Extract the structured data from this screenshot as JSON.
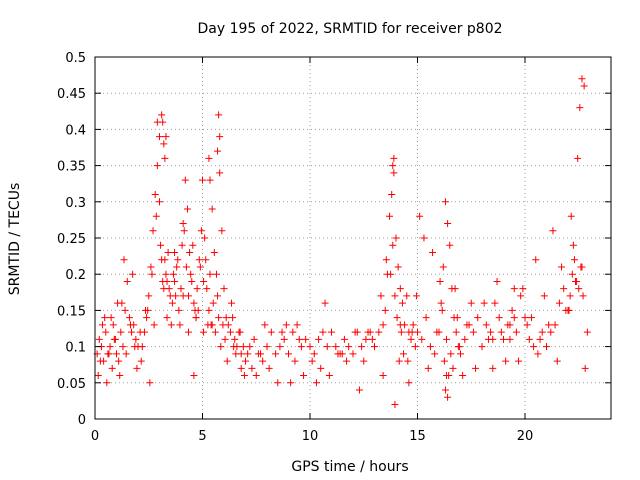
{
  "chart_data": {
    "type": "scatter",
    "title": "Day 195 of 2022, SRMTID for receiver p802",
    "xlabel": "GPS time / hours",
    "ylabel": "SRMTID / TECUs",
    "xlim": [
      0,
      24
    ],
    "ylim": [
      0,
      0.5
    ],
    "xticks": [
      0,
      5,
      10,
      15,
      20
    ],
    "xtick_labels": [
      "0",
      "5",
      "10",
      "15",
      "20"
    ],
    "yticks": [
      0,
      0.05,
      0.1,
      0.15,
      0.2,
      0.25,
      0.3,
      0.35,
      0.4,
      0.45,
      0.5
    ],
    "ytick_labels": [
      "0",
      "0.05",
      "0.1",
      "0.15",
      "0.2",
      "0.25",
      "0.3",
      "0.35",
      "0.4",
      "0.45",
      "0.5"
    ],
    "grid": true,
    "marker": "+",
    "color": "#ff0000",
    "series": [
      {
        "name": "SRMTID",
        "x": [
          0.1,
          0.2,
          0.3,
          0.4,
          0.5,
          0.6,
          0.7,
          0.8,
          0.9,
          1.0,
          1.1,
          1.2,
          1.3,
          1.4,
          1.5,
          1.6,
          1.7,
          1.8,
          1.9,
          2.0,
          2.1,
          2.2,
          2.3,
          2.4,
          2.5,
          2.6,
          2.7,
          2.8,
          2.9,
          3.0,
          3.1,
          3.2,
          3.3,
          3.4,
          3.5,
          3.6,
          3.7,
          3.8,
          3.9,
          4.0,
          4.1,
          4.2,
          4.3,
          4.4,
          4.5,
          4.6,
          4.7,
          4.8,
          4.9,
          5.0,
          5.1,
          5.2,
          5.3,
          5.4,
          5.5,
          5.6,
          5.7,
          5.8,
          5.9,
          6.0,
          6.1,
          6.2,
          6.3,
          6.4,
          6.5,
          6.6,
          6.7,
          6.8,
          6.9,
          7.0,
          7.2,
          7.4,
          7.6,
          7.8,
          8.0,
          8.2,
          8.4,
          8.6,
          8.8,
          9.0,
          9.2,
          9.4,
          9.6,
          9.8,
          10.0,
          10.2,
          10.4,
          10.6,
          10.8,
          11.0,
          11.2,
          11.4,
          11.6,
          11.8,
          12.0,
          12.2,
          12.4,
          12.6,
          12.8,
          13.0,
          13.2,
          13.4,
          13.5,
          13.6,
          13.7,
          13.8,
          13.9,
          14.0,
          14.1,
          14.2,
          14.3,
          14.4,
          14.5,
          14.6,
          14.7,
          14.8,
          14.9,
          15.0,
          15.2,
          15.4,
          15.6,
          15.8,
          16.0,
          16.1,
          16.2,
          16.3,
          16.4,
          16.5,
          16.6,
          16.7,
          16.8,
          16.9,
          17.0,
          17.2,
          17.4,
          17.6,
          17.8,
          18.0,
          18.2,
          18.4,
          18.6,
          18.8,
          19.0,
          19.2,
          19.4,
          19.6,
          19.8,
          20.0,
          20.2,
          20.4,
          20.6,
          20.8,
          21.0,
          21.2,
          21.4,
          21.6,
          21.8,
          22.0,
          22.1,
          22.2,
          22.3,
          22.4,
          22.5,
          22.6,
          22.7,
          22.8,
          0.15,
          0.35,
          0.55,
          0.75,
          0.95,
          1.25,
          1.45,
          1.65,
          1.85,
          2.15,
          2.45,
          2.65,
          2.85,
          3.05,
          3.15,
          3.25,
          3.35,
          3.45,
          3.55,
          3.65,
          3.75,
          3.85,
          3.95,
          4.05,
          4.15,
          4.25,
          4.35,
          4.45,
          4.55,
          4.65,
          4.75,
          4.85,
          4.95,
          5.05,
          5.15,
          5.25,
          5.35,
          5.45,
          5.55,
          5.65,
          5.75,
          5.85,
          5.95,
          6.15,
          6.35,
          6.55,
          6.75,
          6.95,
          7.3,
          7.7,
          8.1,
          8.5,
          8.9,
          9.3,
          9.7,
          10.1,
          10.5,
          10.9,
          11.3,
          11.7,
          12.1,
          12.5,
          12.9,
          13.3,
          13.55,
          13.75,
          13.85,
          13.95,
          14.05,
          14.15,
          14.25,
          14.35,
          14.55,
          14.75,
          14.95,
          15.3,
          15.7,
          16.05,
          16.15,
          16.25,
          16.35,
          16.45,
          16.55,
          16.65,
          16.75,
          16.95,
          17.3,
          17.7,
          18.1,
          18.3,
          18.5,
          18.7,
          18.9,
          19.1,
          19.3,
          19.5,
          19.7,
          19.9,
          20.1,
          20.5,
          20.9,
          21.3,
          21.7,
          22.05,
          22.15,
          22.25,
          22.35,
          22.45,
          22.55,
          22.65,
          22.75,
          2.9,
          3.0,
          3.1,
          3.15,
          3.2,
          3.25,
          3.3,
          5.7,
          5.75,
          5.8,
          5.3,
          5.35,
          13.85,
          13.9,
          13.95,
          16.3,
          16.35,
          16.4,
          0.25,
          1.15,
          1.95,
          2.55,
          4.6,
          6.8,
          7.5,
          9.1,
          10.3,
          12.3,
          13.4,
          14.6,
          15.5,
          17.1,
          19.3,
          20.7,
          21.5,
          22.9,
          0.45,
          0.65,
          0.85,
          1.05,
          1.35,
          1.75,
          2.35,
          2.75,
          3.35,
          3.7,
          4.1,
          4.35,
          4.7,
          5.05,
          5.45,
          6.05,
          6.45,
          7.1,
          7.9,
          8.7,
          9.5,
          10.7,
          11.5,
          12.7,
          14.2,
          15.1,
          15.9,
          16.85,
          17.5,
          18.5,
          19.5,
          20.3,
          21.1,
          21.9,
          22.35,
          22.65
        ],
        "y": [
          0.09,
          0.11,
          0.1,
          0.08,
          0.12,
          0.09,
          0.1,
          0.07,
          0.11,
          0.09,
          0.08,
          0.12,
          0.1,
          0.15,
          0.19,
          0.14,
          0.12,
          0.13,
          0.11,
          0.1,
          0.12,
          0.1,
          0.12,
          0.14,
          0.17,
          0.21,
          0.26,
          0.31,
          0.35,
          0.3,
          0.22,
          0.18,
          0.2,
          0.23,
          0.17,
          0.16,
          0.19,
          0.21,
          0.15,
          0.18,
          0.27,
          0.33,
          0.29,
          0.23,
          0.19,
          0.16,
          0.14,
          0.15,
          0.21,
          0.33,
          0.25,
          0.18,
          0.15,
          0.13,
          0.16,
          0.12,
          0.17,
          0.34,
          0.26,
          0.18,
          0.14,
          0.13,
          0.12,
          0.14,
          0.11,
          0.1,
          0.12,
          0.09,
          0.1,
          0.08,
          0.1,
          0.11,
          0.09,
          0.08,
          0.1,
          0.12,
          0.09,
          0.1,
          0.11,
          0.09,
          0.12,
          0.13,
          0.1,
          0.11,
          0.1,
          0.09,
          0.11,
          0.12,
          0.1,
          0.12,
          0.1,
          0.09,
          0.11,
          0.1,
          0.09,
          0.12,
          0.1,
          0.11,
          0.12,
          0.1,
          0.12,
          0.13,
          0.15,
          0.2,
          0.28,
          0.31,
          0.36,
          0.25,
          0.21,
          0.18,
          0.16,
          0.13,
          0.17,
          0.12,
          0.11,
          0.13,
          0.1,
          0.12,
          0.11,
          0.14,
          0.1,
          0.09,
          0.12,
          0.16,
          0.21,
          0.3,
          0.27,
          0.24,
          0.18,
          0.14,
          0.12,
          0.1,
          0.09,
          0.11,
          0.13,
          0.12,
          0.14,
          0.1,
          0.13,
          0.12,
          0.16,
          0.14,
          0.11,
          0.13,
          0.15,
          0.12,
          0.17,
          0.14,
          0.11,
          0.1,
          0.09,
          0.12,
          0.1,
          0.12,
          0.13,
          0.16,
          0.18,
          0.15,
          0.17,
          0.2,
          0.22,
          0.19,
          0.18,
          0.21,
          0.17,
          0.07,
          0.06,
          0.13,
          0.05,
          0.14,
          0.11,
          0.16,
          0.09,
          0.13,
          0.1,
          0.08,
          0.15,
          0.2,
          0.28,
          0.24,
          0.19,
          0.22,
          0.14,
          0.18,
          0.13,
          0.2,
          0.17,
          0.22,
          0.13,
          0.24,
          0.26,
          0.21,
          0.17,
          0.2,
          0.24,
          0.15,
          0.18,
          0.22,
          0.26,
          0.19,
          0.22,
          0.13,
          0.2,
          0.29,
          0.23,
          0.2,
          0.14,
          0.1,
          0.13,
          0.08,
          0.16,
          0.09,
          0.12,
          0.06,
          0.07,
          0.09,
          0.07,
          0.05,
          0.13,
          0.08,
          0.06,
          0.08,
          0.07,
          0.06,
          0.09,
          0.08,
          0.12,
          0.08,
          0.11,
          0.17,
          0.22,
          0.2,
          0.24,
          0.17,
          0.14,
          0.08,
          0.12,
          0.09,
          0.08,
          0.12,
          0.17,
          0.25,
          0.23,
          0.19,
          0.15,
          0.08,
          0.11,
          0.06,
          0.09,
          0.07,
          0.18,
          0.1,
          0.13,
          0.07,
          0.16,
          0.11,
          0.07,
          0.19,
          0.12,
          0.08,
          0.11,
          0.14,
          0.08,
          0.18,
          0.13,
          0.22,
          0.17,
          0.26,
          0.21,
          0.15,
          0.28,
          0.24,
          0.19,
          0.36,
          0.43,
          0.47,
          0.46,
          0.41,
          0.39,
          0.42,
          0.41,
          0.38,
          0.36,
          0.39,
          0.37,
          0.42,
          0.39,
          0.36,
          0.33,
          0.35,
          0.34,
          0.02,
          0.04,
          0.06,
          0.03,
          0.08,
          0.06,
          0.07,
          0.05,
          0.06,
          0.07,
          0.06,
          0.05,
          0.05,
          0.04,
          0.06,
          0.05,
          0.07,
          0.06,
          0.13,
          0.11,
          0.08,
          0.12,
          0.14,
          0.09,
          0.13,
          0.16,
          0.22,
          0.2,
          0.15,
          0.13,
          0.19,
          0.23,
          0.17,
          0.12,
          0.14,
          0.12,
          0.13,
          0.11,
          0.1,
          0.09,
          0.13,
          0.12,
          0.11,
          0.16,
          0.09,
          0.12,
          0.13,
          0.28,
          0.12,
          0.14,
          0.16,
          0.11,
          0.18,
          0.14,
          0.13,
          0.15,
          0.19,
          0.21
        ]
      }
    ]
  }
}
